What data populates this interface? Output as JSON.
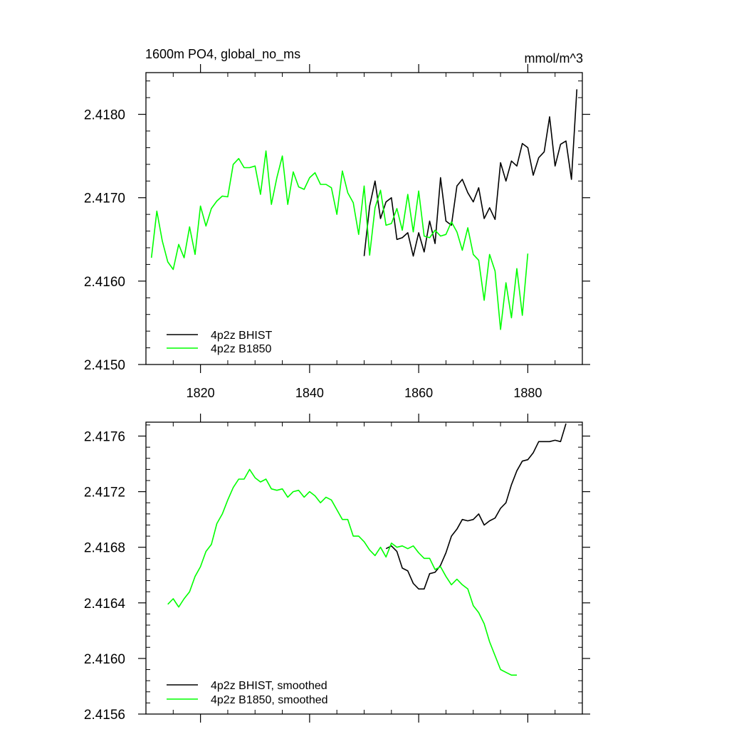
{
  "chart_data": [
    {
      "type": "line",
      "title": "1600m PO4, global_no_ms",
      "units": "mmol/m^3",
      "xlim": [
        1810,
        1890
      ],
      "ylim": [
        2.415,
        2.4185
      ],
      "xticks": [
        1820,
        1840,
        1860,
        1880
      ],
      "yticks": [
        2.415,
        2.416,
        2.417,
        2.418
      ],
      "x_tick_labels": [
        "1820",
        "1840",
        "1860",
        "1880"
      ],
      "y_tick_labels": [
        "2.4150",
        "2.4160",
        "2.4170",
        "2.4180"
      ],
      "legend": {
        "placement": "bottom-left"
      },
      "series": [
        {
          "name": "4p2z BHIST",
          "color": "#000000",
          "x0": 1850,
          "values": [
            2.4163,
            2.4169,
            2.4172,
            2.41675,
            2.41695,
            2.417,
            2.4165,
            2.41652,
            2.41658,
            2.4163,
            2.41658,
            2.41635,
            2.41672,
            2.41645,
            2.41724,
            2.41672,
            2.41667,
            2.41714,
            2.41722,
            2.41706,
            2.41695,
            2.41712,
            2.41675,
            2.41688,
            2.41674,
            2.41742,
            2.4172,
            2.41744,
            2.41738,
            2.41765,
            2.4176,
            2.41727,
            2.41748,
            2.41755,
            2.41797,
            2.41738,
            2.41764,
            2.41768,
            2.41722,
            2.4183
          ]
        },
        {
          "name": "4p2z B1850",
          "color": "#00ff00",
          "x0": 1811,
          "values": [
            2.41628,
            2.41684,
            2.41648,
            2.41623,
            2.41614,
            2.41644,
            2.41628,
            2.41665,
            2.41632,
            2.4169,
            2.41666,
            2.41687,
            2.41696,
            2.41702,
            2.41701,
            2.4174,
            2.41747,
            2.41736,
            2.41736,
            2.41738,
            2.41704,
            2.41756,
            2.41692,
            2.41724,
            2.4175,
            2.41692,
            2.41731,
            2.41713,
            2.4171,
            2.41724,
            2.4173,
            2.41716,
            2.41716,
            2.41712,
            2.4168,
            2.41732,
            2.41706,
            2.41694,
            2.41656,
            2.41714,
            2.41631,
            2.41688,
            2.41709,
            2.41667,
            2.41669,
            2.41687,
            2.41661,
            2.41704,
            2.41659,
            2.41708,
            2.41654,
            2.41652,
            2.41661,
            2.41654,
            2.41656,
            2.41671,
            2.41659,
            2.41637,
            2.41664,
            2.41632,
            2.41625,
            2.41577,
            2.41632,
            2.41612,
            2.41542,
            2.41598,
            2.41556,
            2.41615,
            2.41559,
            2.41633
          ]
        }
      ]
    },
    {
      "type": "line",
      "xlim": [
        1810,
        1890
      ],
      "ylim": [
        2.4156,
        2.4177
      ],
      "xticks": [
        1820,
        1840,
        1860,
        1880
      ],
      "yticks": [
        2.4156,
        2.416,
        2.4164,
        2.4168,
        2.4172,
        2.4176
      ],
      "y_tick_labels": [
        "2.4156",
        "2.4160",
        "2.4164",
        "2.4168",
        "2.4172",
        "2.4176"
      ],
      "legend": {
        "placement": "bottom-left"
      },
      "series": [
        {
          "name": "4p2z BHIST, smoothed",
          "color": "#000000",
          "x0": 1854,
          "values": [
            2.41679,
            2.41681,
            2.41677,
            2.41665,
            2.41663,
            2.41654,
            2.4165,
            2.4165,
            2.41661,
            2.41662,
            2.41667,
            2.41676,
            2.41688,
            2.41693,
            2.417,
            2.41699,
            2.417,
            2.41704,
            2.41696,
            2.41699,
            2.41701,
            2.41708,
            2.41712,
            2.41725,
            2.41735,
            2.41742,
            2.41743,
            2.41748,
            2.41756,
            2.41756,
            2.41756,
            2.41757,
            2.41756,
            2.41769
          ]
        },
        {
          "name": "4p2z B1850, smoothed",
          "color": "#00ff00",
          "x0": 1814,
          "values": [
            2.41639,
            2.41643,
            2.41637,
            2.41643,
            2.41648,
            2.41659,
            2.41666,
            2.41677,
            2.41682,
            2.41697,
            2.41704,
            2.41714,
            2.41723,
            2.41729,
            2.41729,
            2.41736,
            2.4173,
            2.41727,
            2.41729,
            2.41722,
            2.41721,
            2.41722,
            2.41716,
            2.4172,
            2.41721,
            2.41716,
            2.4172,
            2.41717,
            2.41712,
            2.41716,
            2.41714,
            2.41707,
            2.417,
            2.417,
            2.41688,
            2.41688,
            2.41684,
            2.41678,
            2.41674,
            2.4168,
            2.41673,
            2.41683,
            2.4168,
            2.41681,
            2.41679,
            2.41681,
            2.41676,
            2.41672,
            2.41672,
            2.41664,
            2.41666,
            2.41659,
            2.41653,
            2.41657,
            2.41653,
            2.4165,
            2.41638,
            2.41633,
            2.41625,
            2.41612,
            2.41602,
            2.41592,
            2.4159,
            2.41588,
            2.41588
          ]
        }
      ]
    }
  ]
}
